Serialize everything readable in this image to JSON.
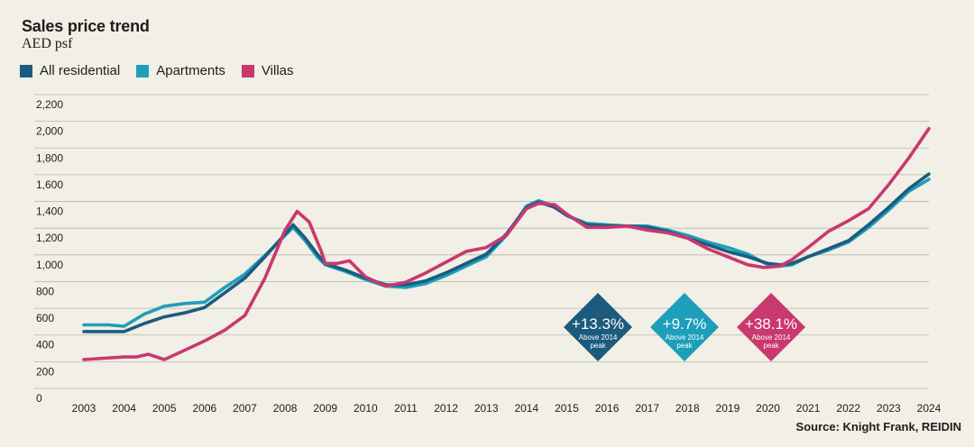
{
  "chart_data": {
    "type": "line",
    "title": "Sales price trend",
    "ylabel": "AED psf",
    "xlabel": "",
    "ylim": [
      0,
      2200
    ],
    "xlim": [
      2003,
      2024
    ],
    "x_ticks": [
      "2003",
      "2004",
      "2005",
      "2006",
      "2007",
      "2008",
      "2009",
      "2010",
      "2011",
      "2012",
      "2013",
      "2014",
      "2015",
      "2016",
      "2017",
      "2018",
      "2019",
      "2020",
      "2021",
      "2022",
      "2023",
      "2024"
    ],
    "y_ticks": [
      "0",
      "200",
      "400",
      "600",
      "800",
      "1,000",
      "1,200",
      "1,400",
      "1,600",
      "1,800",
      "2,000",
      "2,200"
    ],
    "series": [
      {
        "name": "All residential",
        "color": "#1d5b7e",
        "x": [
          2003,
          2003.6,
          2004,
          2004.5,
          2005,
          2005.5,
          2006,
          2006.5,
          2007,
          2007.5,
          2008,
          2008.2,
          2008.5,
          2008.8,
          2009,
          2009.5,
          2010,
          2010.5,
          2011,
          2011.5,
          2012,
          2012.5,
          2013,
          2013.5,
          2014,
          2014.3,
          2014.7,
          2015,
          2015.5,
          2016,
          2016.5,
          2017,
          2017.5,
          2018,
          2018.5,
          2019,
          2019.5,
          2020,
          2020.3,
          2020.6,
          2021,
          2021.5,
          2022,
          2022.5,
          2023,
          2023.5,
          2024
        ],
        "values": [
          500,
          500,
          500,
          560,
          610,
          640,
          680,
          790,
          900,
          1060,
          1230,
          1300,
          1200,
          1080,
          1010,
          960,
          900,
          850,
          850,
          880,
          940,
          1010,
          1080,
          1230,
          1430,
          1470,
          1430,
          1370,
          1300,
          1290,
          1290,
          1280,
          1250,
          1200,
          1150,
          1100,
          1060,
          1010,
          1000,
          1010,
          1060,
          1120,
          1180,
          1300,
          1430,
          1570,
          1680
        ]
      },
      {
        "name": "Apartments",
        "color": "#1d9fbb",
        "x": [
          2003,
          2003.6,
          2004,
          2004.5,
          2005,
          2005.5,
          2006,
          2006.5,
          2007,
          2007.5,
          2008,
          2008.2,
          2008.5,
          2008.8,
          2009,
          2009.5,
          2010,
          2010.5,
          2011,
          2011.5,
          2012,
          2012.5,
          2013,
          2013.5,
          2014,
          2014.3,
          2014.7,
          2015,
          2015.5,
          2016,
          2016.5,
          2017,
          2017.5,
          2018,
          2018.5,
          2019,
          2019.5,
          2020,
          2020.3,
          2020.6,
          2021,
          2021.5,
          2022,
          2022.5,
          2023,
          2023.5,
          2024
        ],
        "values": [
          550,
          550,
          540,
          630,
          690,
          710,
          720,
          830,
          930,
          1070,
          1220,
          1280,
          1180,
          1060,
          1000,
          950,
          890,
          840,
          830,
          860,
          920,
          990,
          1060,
          1220,
          1440,
          1480,
          1440,
          1370,
          1310,
          1300,
          1290,
          1290,
          1260,
          1220,
          1170,
          1130,
          1080,
          1000,
          990,
          1000,
          1060,
          1110,
          1170,
          1280,
          1410,
          1550,
          1640
        ]
      },
      {
        "name": "Villas",
        "color": "#c9386f",
        "x": [
          2003,
          2003.5,
          2004,
          2004.3,
          2004.6,
          2005,
          2005.5,
          2006,
          2006.5,
          2007,
          2007.5,
          2008,
          2008.3,
          2008.6,
          2008.9,
          2009,
          2009.3,
          2009.6,
          2010,
          2010.5,
          2011,
          2011.5,
          2012,
          2012.5,
          2013,
          2013.5,
          2014,
          2014.3,
          2014.7,
          2015,
          2015.5,
          2016,
          2016.5,
          2017,
          2017.5,
          2018,
          2018.5,
          2019,
          2019.5,
          2019.9,
          2020.3,
          2020.6,
          2021,
          2021.5,
          2022,
          2022.5,
          2023,
          2023.5,
          2024
        ],
        "values": [
          290,
          300,
          310,
          310,
          330,
          290,
          360,
          430,
          510,
          620,
          900,
          1260,
          1400,
          1320,
          1100,
          1010,
          1010,
          1030,
          910,
          840,
          870,
          940,
          1020,
          1100,
          1130,
          1220,
          1420,
          1460,
          1450,
          1380,
          1280,
          1280,
          1290,
          1260,
          1240,
          1200,
          1120,
          1060,
          1000,
          980,
          990,
          1040,
          1130,
          1250,
          1330,
          1420,
          1600,
          1800,
          2020
        ]
      }
    ],
    "annotations": [
      {
        "value": "+13.3%",
        "caption": "Above 2014 peak",
        "color": "#1d5b7e"
      },
      {
        "value": "+9.7%",
        "caption": "Above 2014 peak",
        "color": "#1d9fbb"
      },
      {
        "value": "+38.1%",
        "caption": "Above 2014 peak",
        "color": "#c9386f"
      }
    ],
    "source": "Source: Knight Frank, REIDIN"
  }
}
